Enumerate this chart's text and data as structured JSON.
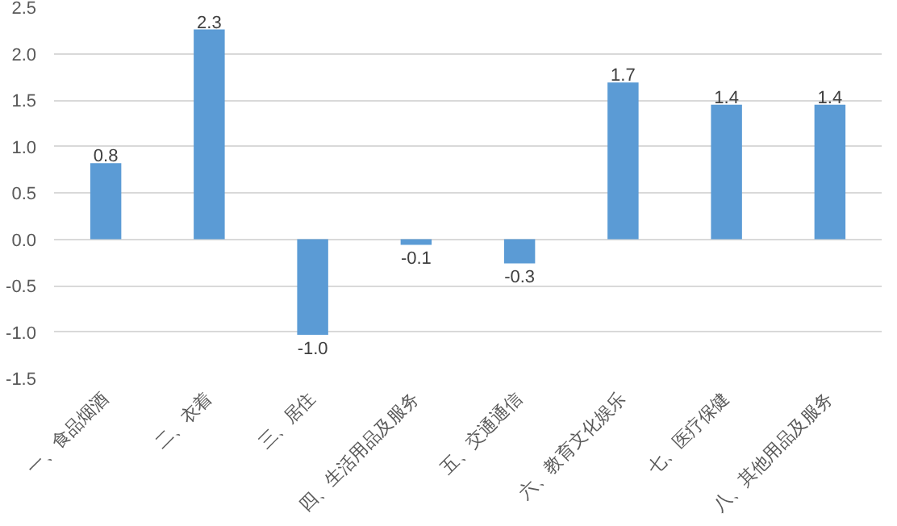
{
  "chart_data": {
    "type": "bar",
    "categories": [
      "一、食品烟酒",
      "二、衣着",
      "三、居住",
      "四、生活用品及服务",
      "五、交通通信",
      "六、教育文化娱乐",
      "七、医疗保健",
      "八、其他用品及服务"
    ],
    "values": [
      0.82,
      2.26,
      -1.03,
      -0.06,
      -0.26,
      1.69,
      1.45,
      1.45
    ],
    "value_labels": [
      "0.8",
      "2.3",
      "-1.0",
      "-0.1",
      "-0.3",
      "1.7",
      "1.4",
      "1.4"
    ],
    "color": "#5b9bd5",
    "ylim": [
      -1.5,
      2.5
    ],
    "yticks": [
      {
        "value": -1.5,
        "label": "-1.5"
      },
      {
        "value": -1.0,
        "label": "-1.0"
      },
      {
        "value": -0.5,
        "label": "-0.5"
      },
      {
        "value": 0.0,
        "label": "0.0"
      },
      {
        "value": 0.5,
        "label": "0.5"
      },
      {
        "value": 1.0,
        "label": "1.0"
      },
      {
        "value": 1.5,
        "label": "1.5"
      },
      {
        "value": 2.0,
        "label": "2.0"
      },
      {
        "value": 2.5,
        "label": "2.5"
      }
    ],
    "grid": "y"
  }
}
